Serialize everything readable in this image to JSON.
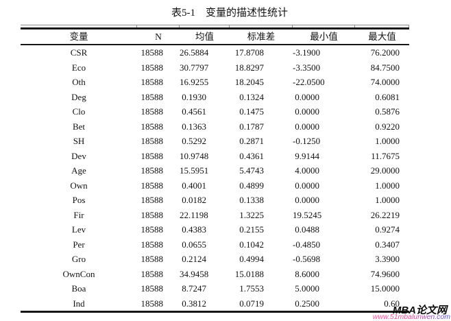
{
  "title": "表5-1　变量的描述性统计",
  "table": {
    "columns": [
      "变量",
      "N",
      "均值",
      "标准差",
      "最小值",
      "最大值"
    ],
    "rows": [
      {
        "variable": "CSR",
        "n": "18588",
        "mean": "26.5884",
        "sd": "17.8708",
        "min": "-3.1900",
        "max": "76.2000"
      },
      {
        "variable": "Eco",
        "n": "18588",
        "mean": "30.7797",
        "sd": "18.8297",
        "min": "-3.3500",
        "max": "84.7500"
      },
      {
        "variable": "Oth",
        "n": "18588",
        "mean": "16.9255",
        "sd": "18.2045",
        "min": "-22.0500",
        "max": "74.0000"
      },
      {
        "variable": "Deg",
        "n": "18588",
        "mean": "0.1930",
        "sd": "0.1324",
        "min": "0.0000",
        "max": "0.6081"
      },
      {
        "variable": "Clo",
        "n": "18588",
        "mean": "0.4561",
        "sd": "0.1475",
        "min": "0.0000",
        "max": "0.5876"
      },
      {
        "variable": "Bet",
        "n": "18588",
        "mean": "0.1363",
        "sd": "0.1787",
        "min": "0.0000",
        "max": "0.9220"
      },
      {
        "variable": "SH",
        "n": "18588",
        "mean": "0.5292",
        "sd": "0.2871",
        "min": "-0.1250",
        "max": "1.0000"
      },
      {
        "variable": "Dev",
        "n": "18588",
        "mean": "10.9748",
        "sd": "0.4361",
        "min": "9.9144",
        "max": "11.7675"
      },
      {
        "variable": "Age",
        "n": "18588",
        "mean": "15.5951",
        "sd": "5.4743",
        "min": "4.0000",
        "max": "29.0000"
      },
      {
        "variable": "Own",
        "n": "18588",
        "mean": "0.4001",
        "sd": "0.4899",
        "min": "0.0000",
        "max": "1.0000"
      },
      {
        "variable": "Pos",
        "n": "18588",
        "mean": "0.0182",
        "sd": "0.1338",
        "min": "0.0000",
        "max": "1.0000"
      },
      {
        "variable": "Fir",
        "n": "18588",
        "mean": "22.1198",
        "sd": "1.3225",
        "min": "19.5245",
        "max": "26.2219"
      },
      {
        "variable": "Lev",
        "n": "18588",
        "mean": "0.4383",
        "sd": "0.2155",
        "min": "0.0488",
        "max": "0.9274"
      },
      {
        "variable": "Per",
        "n": "18588",
        "mean": "0.0655",
        "sd": "0.1042",
        "min": "-0.4850",
        "max": "0.3407"
      },
      {
        "variable": "Gro",
        "n": "18588",
        "mean": "0.2124",
        "sd": "0.4994",
        "min": "-0.5698",
        "max": "3.3900"
      },
      {
        "variable": "OwnCon",
        "n": "18588",
        "mean": "34.9458",
        "sd": "15.0188",
        "min": "8.6000",
        "max": "74.9600"
      },
      {
        "variable": "Boa",
        "n": "18588",
        "mean": "8.7247",
        "sd": "1.7553",
        "min": "5.0000",
        "max": "15.0000"
      },
      {
        "variable": "Ind",
        "n": "18588",
        "mean": "0.3812",
        "sd": "0.0719",
        "min": "0.2500",
        "max": "0.60"
      }
    ]
  },
  "watermark": {
    "name": "MBA论文网",
    "url": "www.51mbalunwen.com"
  },
  "colors": {
    "rule": "#161616",
    "text": "#111111",
    "tick": "#8a8a8a",
    "watermark_name": "#0a0a0a",
    "watermark_url_start": "#f0509a",
    "watermark_url_mid": "#d8489e",
    "watermark_url_end": "#4953d8"
  }
}
